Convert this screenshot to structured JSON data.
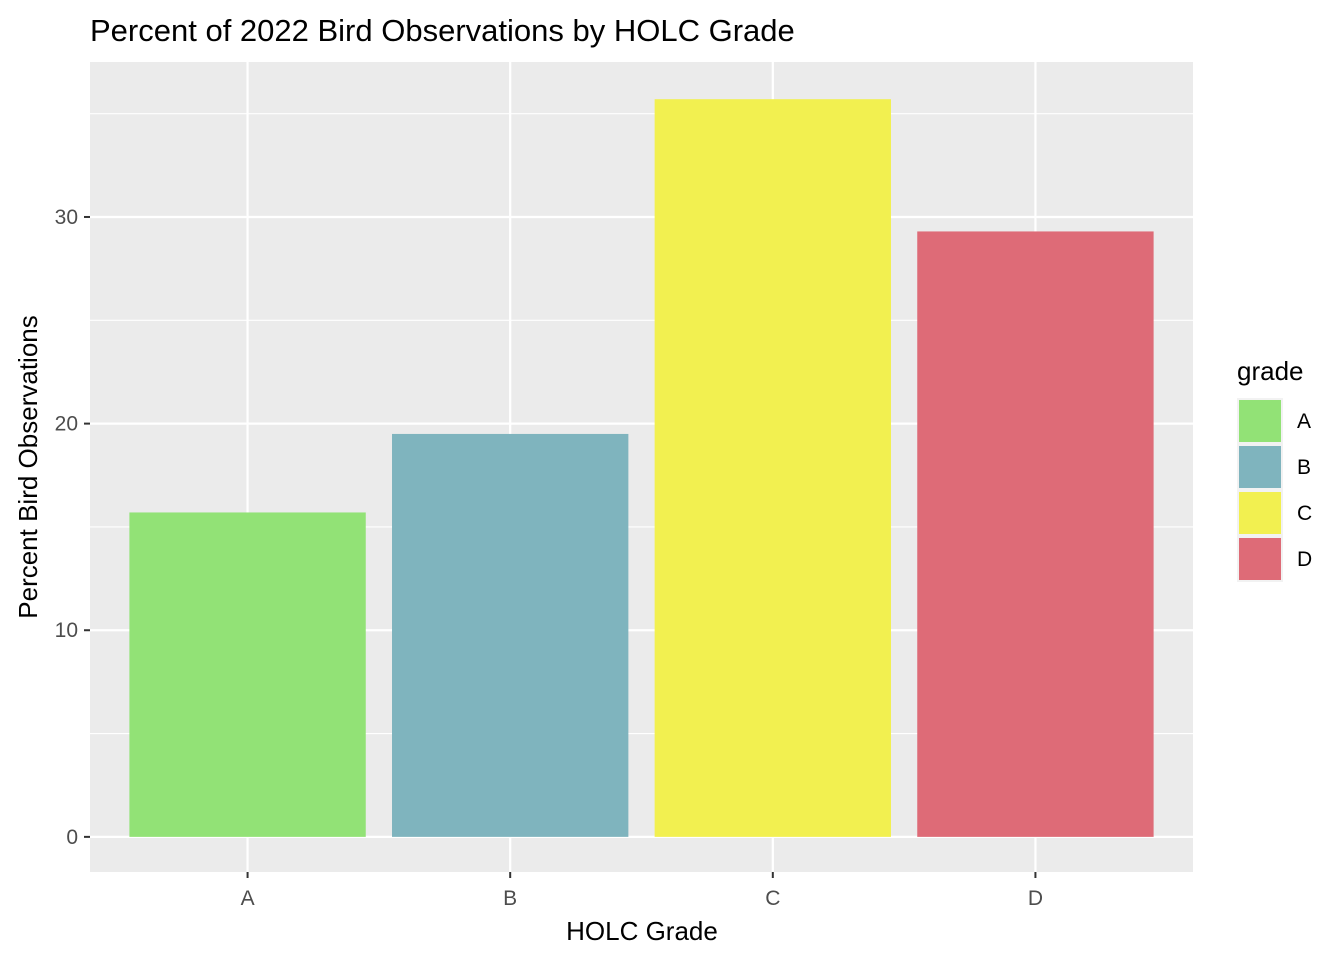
{
  "chart_data": {
    "type": "bar",
    "title": "Percent of 2022 Bird Observations by HOLC Grade",
    "xlabel": "HOLC Grade",
    "ylabel": "Percent Bird Observations",
    "categories": [
      "A",
      "B",
      "C",
      "D"
    ],
    "values": [
      15.7,
      19.5,
      35.7,
      29.3
    ],
    "colors": [
      "#92e276",
      "#7fb4be",
      "#f2f050",
      "#de6b77"
    ],
    "ylim": [
      -1.7,
      37.5
    ],
    "yticks": [
      0,
      10,
      20,
      30
    ],
    "ytick_labels": [
      "0",
      "10",
      "20",
      "30"
    ],
    "grid": true,
    "panel_background": "#ebebeb",
    "legend": {
      "title": "grade",
      "position": "right",
      "items": [
        {
          "label": "A",
          "color": "#92e276"
        },
        {
          "label": "B",
          "color": "#7fb4be"
        },
        {
          "label": "C",
          "color": "#f2f050"
        },
        {
          "label": "D",
          "color": "#de6b77"
        }
      ]
    }
  }
}
